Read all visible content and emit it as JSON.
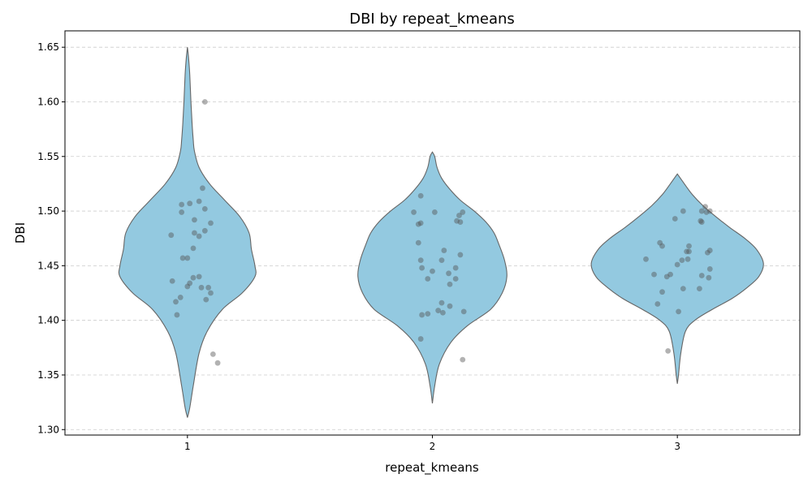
{
  "chart_data": {
    "type": "violin",
    "title": "DBI by repeat_kmeans",
    "xlabel": "repeat_kmeans",
    "ylabel": "DBI",
    "categories": [
      "1",
      "2",
      "3"
    ],
    "ylim": [
      1.295,
      1.665
    ],
    "yticks": [
      "1.30",
      "1.35",
      "1.40",
      "1.45",
      "1.50",
      "1.55",
      "1.60",
      "1.65"
    ],
    "grid": "y dashed",
    "violin_color": "#93c9e0",
    "violin_edge_color": "#666666",
    "point_color": "#555555",
    "violins": [
      {
        "category": "1",
        "profile": [
          [
            1.311,
            0.0
          ],
          [
            1.32,
            0.02
          ],
          [
            1.34,
            0.05
          ],
          [
            1.37,
            0.1
          ],
          [
            1.39,
            0.17
          ],
          [
            1.41,
            0.3
          ],
          [
            1.425,
            0.47
          ],
          [
            1.44,
            0.58
          ],
          [
            1.45,
            0.58
          ],
          [
            1.465,
            0.55
          ],
          [
            1.48,
            0.53
          ],
          [
            1.495,
            0.45
          ],
          [
            1.51,
            0.32
          ],
          [
            1.525,
            0.19
          ],
          [
            1.54,
            0.1
          ],
          [
            1.555,
            0.06
          ],
          [
            1.565,
            0.05
          ],
          [
            1.58,
            0.04
          ],
          [
            1.6,
            0.03
          ],
          [
            1.625,
            0.02
          ],
          [
            1.64,
            0.01
          ],
          [
            1.65,
            0.0
          ]
        ],
        "points": [
          [
            0.13,
            1.521
          ],
          [
            -0.05,
            1.506
          ],
          [
            0.02,
            1.507
          ],
          [
            0.1,
            1.509
          ],
          [
            0.15,
            1.502
          ],
          [
            -0.05,
            1.499
          ],
          [
            0.06,
            1.492
          ],
          [
            0.2,
            1.489
          ],
          [
            -0.14,
            1.478
          ],
          [
            0.15,
            1.482
          ],
          [
            0.06,
            1.48
          ],
          [
            0.1,
            1.477
          ],
          [
            0.05,
            1.466
          ],
          [
            -0.04,
            1.457
          ],
          [
            0.0,
            1.457
          ],
          [
            -0.13,
            1.436
          ],
          [
            0.05,
            1.439
          ],
          [
            0.1,
            1.44
          ],
          [
            0.18,
            1.43
          ],
          [
            0.2,
            1.425
          ],
          [
            0.02,
            1.434
          ],
          [
            0.0,
            1.431
          ],
          [
            0.12,
            1.43
          ],
          [
            -0.1,
            1.417
          ],
          [
            -0.06,
            1.421
          ],
          [
            0.16,
            1.419
          ],
          [
            -0.09,
            1.405
          ],
          [
            0.15,
            1.6
          ],
          [
            0.22,
            1.369
          ],
          [
            0.26,
            1.361
          ]
        ]
      },
      {
        "category": "2",
        "profile": [
          [
            1.324,
            0.0
          ],
          [
            1.34,
            0.02
          ],
          [
            1.36,
            0.06
          ],
          [
            1.38,
            0.16
          ],
          [
            1.395,
            0.3
          ],
          [
            1.41,
            0.5
          ],
          [
            1.425,
            0.6
          ],
          [
            1.44,
            0.64
          ],
          [
            1.455,
            0.62
          ],
          [
            1.47,
            0.57
          ],
          [
            1.48,
            0.53
          ],
          [
            1.49,
            0.46
          ],
          [
            1.5,
            0.36
          ],
          [
            1.51,
            0.24
          ],
          [
            1.52,
            0.15
          ],
          [
            1.53,
            0.08
          ],
          [
            1.54,
            0.04
          ],
          [
            1.55,
            0.02
          ],
          [
            1.554,
            0.0
          ]
        ],
        "points": [
          [
            -0.1,
            1.514
          ],
          [
            -0.16,
            1.499
          ],
          [
            0.02,
            1.499
          ],
          [
            0.26,
            1.499
          ],
          [
            0.23,
            1.496
          ],
          [
            0.21,
            1.491
          ],
          [
            0.24,
            1.49
          ],
          [
            -0.1,
            1.489
          ],
          [
            -0.12,
            1.488
          ],
          [
            -0.12,
            1.471
          ],
          [
            0.1,
            1.464
          ],
          [
            0.24,
            1.46
          ],
          [
            -0.1,
            1.455
          ],
          [
            0.08,
            1.455
          ],
          [
            0.2,
            1.448
          ],
          [
            -0.09,
            1.448
          ],
          [
            0.0,
            1.445
          ],
          [
            0.14,
            1.443
          ],
          [
            0.2,
            1.438
          ],
          [
            -0.04,
            1.438
          ],
          [
            0.15,
            1.433
          ],
          [
            0.08,
            1.416
          ],
          [
            0.15,
            1.413
          ],
          [
            0.05,
            1.409
          ],
          [
            0.27,
            1.408
          ],
          [
            0.09,
            1.407
          ],
          [
            -0.09,
            1.405
          ],
          [
            -0.04,
            1.406
          ],
          [
            -0.1,
            1.383
          ],
          [
            0.26,
            1.364
          ]
        ]
      },
      {
        "category": "3",
        "profile": [
          [
            1.342,
            0.0
          ],
          [
            1.35,
            0.01
          ],
          [
            1.37,
            0.03
          ],
          [
            1.39,
            0.07
          ],
          [
            1.4,
            0.15
          ],
          [
            1.41,
            0.3
          ],
          [
            1.42,
            0.47
          ],
          [
            1.43,
            0.6
          ],
          [
            1.44,
            0.7
          ],
          [
            1.452,
            0.74
          ],
          [
            1.465,
            0.68
          ],
          [
            1.475,
            0.58
          ],
          [
            1.485,
            0.45
          ],
          [
            1.495,
            0.33
          ],
          [
            1.505,
            0.22
          ],
          [
            1.515,
            0.13
          ],
          [
            1.525,
            0.06
          ],
          [
            1.534,
            0.0
          ]
        ],
        "points": [
          [
            0.05,
            1.5
          ],
          [
            0.24,
            1.504
          ],
          [
            0.25,
            1.499
          ],
          [
            0.21,
            1.5
          ],
          [
            0.28,
            1.5
          ],
          [
            -0.02,
            1.493
          ],
          [
            0.2,
            1.491
          ],
          [
            0.21,
            1.49
          ],
          [
            -0.15,
            1.471
          ],
          [
            -0.13,
            1.468
          ],
          [
            0.1,
            1.468
          ],
          [
            0.08,
            1.463
          ],
          [
            0.1,
            1.463
          ],
          [
            0.28,
            1.464
          ],
          [
            0.26,
            1.462
          ],
          [
            -0.27,
            1.456
          ],
          [
            0.09,
            1.456
          ],
          [
            0.04,
            1.455
          ],
          [
            0.0,
            1.451
          ],
          [
            0.28,
            1.447
          ],
          [
            -0.2,
            1.442
          ],
          [
            -0.06,
            1.442
          ],
          [
            -0.09,
            1.44
          ],
          [
            0.21,
            1.441
          ],
          [
            0.27,
            1.439
          ],
          [
            0.05,
            1.429
          ],
          [
            0.19,
            1.429
          ],
          [
            -0.13,
            1.426
          ],
          [
            -0.17,
            1.415
          ],
          [
            0.01,
            1.408
          ],
          [
            -0.08,
            1.372
          ]
        ]
      }
    ]
  }
}
